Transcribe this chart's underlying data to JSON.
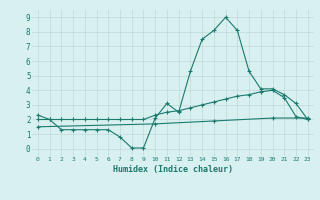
{
  "line1_x": [
    0,
    1,
    2,
    3,
    4,
    5,
    6,
    7,
    8,
    9,
    10,
    11,
    12,
    13,
    14,
    15,
    16,
    17,
    18,
    19,
    20,
    21,
    22,
    23
  ],
  "line1_y": [
    2.3,
    2.0,
    1.3,
    1.3,
    1.3,
    1.3,
    1.3,
    0.8,
    0.05,
    0.05,
    2.1,
    3.1,
    2.5,
    5.3,
    7.5,
    8.1,
    9.0,
    8.1,
    5.3,
    4.1,
    4.1,
    3.7,
    3.1,
    2.0
  ],
  "line2_x": [
    0,
    1,
    2,
    3,
    4,
    5,
    6,
    7,
    8,
    9,
    10,
    11,
    12,
    13,
    14,
    15,
    16,
    17,
    18,
    19,
    20,
    21,
    22,
    23
  ],
  "line2_y": [
    2.0,
    2.0,
    2.0,
    2.0,
    2.0,
    2.0,
    2.0,
    2.0,
    2.0,
    2.0,
    2.3,
    2.5,
    2.6,
    2.8,
    3.0,
    3.2,
    3.4,
    3.6,
    3.7,
    3.9,
    4.0,
    3.5,
    2.2,
    2.0
  ],
  "line3_x": [
    0,
    10,
    15,
    20,
    23
  ],
  "line3_y": [
    1.5,
    1.7,
    1.9,
    2.1,
    2.1
  ],
  "color": "#1a7a6e",
  "bg_color": "#d8f0f0",
  "grid_color": "#c0d8d8",
  "xlabel": "Humidex (Indice chaleur)",
  "xlim": [
    -0.5,
    23.5
  ],
  "ylim": [
    -0.5,
    9.5
  ],
  "xticks": [
    0,
    1,
    2,
    3,
    4,
    5,
    6,
    7,
    8,
    9,
    10,
    11,
    12,
    13,
    14,
    15,
    16,
    17,
    18,
    19,
    20,
    21,
    22,
    23
  ],
  "yticks": [
    0,
    1,
    2,
    3,
    4,
    5,
    6,
    7,
    8,
    9
  ],
  "xtick_labels": [
    "0",
    "1",
    "2",
    "3",
    "4",
    "5",
    "6",
    "7",
    "8",
    "9",
    "10",
    "11",
    "12",
    "13",
    "14",
    "15",
    "16",
    "17",
    "18",
    "19",
    "20",
    "21",
    "22",
    "23"
  ],
  "marker": "+",
  "markersize": 3,
  "linewidth": 0.8
}
